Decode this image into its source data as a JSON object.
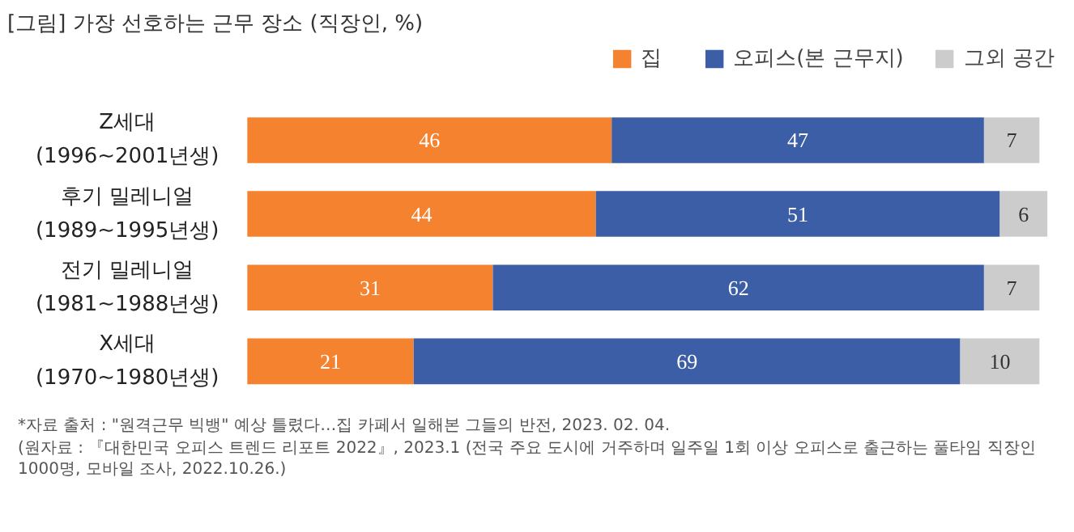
{
  "chart_data": {
    "type": "bar",
    "orientation": "horizontal",
    "stacked": true,
    "title": "[그림] 가장 선호하는 근무 장소 (직장인, %)",
    "categories": [
      "Z세대\n(1996~2001년생)",
      "후기 밀레니얼\n(1989~1995년생)",
      "전기 밀레니얼\n(1981~1988년생)",
      "X세대\n(1970~1980년생)"
    ],
    "series": [
      {
        "name": "집",
        "color": "#f5822f",
        "values": [
          46,
          44,
          31,
          21
        ]
      },
      {
        "name": "오피스(본 근무지)",
        "color": "#3b5ea7",
        "values": [
          47,
          51,
          62,
          69
        ]
      },
      {
        "name": "그외 공간",
        "color": "#cccccc",
        "values": [
          7,
          6,
          7,
          10
        ]
      }
    ],
    "data_labels": true,
    "legend": "top",
    "grid": false,
    "annotations": [
      "*자료 출처 : \"원격근무 빅뱅\" 예상 틀렸다…집 카페서 일해본 그들의 반전, 2023. 02. 04.",
      "(원자료 : 『대한민국 오피스 트렌드 리포트 2022』, 2023.1 (전국 주요 도시에 거주하며 일주일 1회 이상 오피스로 출근하는 풀타임 직장인 1000명, 모바일 조사, 2022.10.26.)"
    ]
  }
}
